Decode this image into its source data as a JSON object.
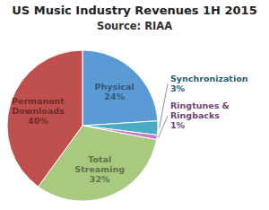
{
  "chart_data": {
    "type": "pie",
    "title": "US Music Industry Revenues 1H 2015",
    "subtitle": "Source: RIAA",
    "categories": [
      "Physical",
      "Synchronization",
      "Ringtunes &\nRingbacks",
      "Total\nStreaming",
      "Permanent\nDownloads"
    ],
    "values": [
      24,
      3,
      1,
      32,
      40
    ],
    "value_labels": [
      "24%",
      "3%",
      "1%",
      "32%",
      "40%"
    ],
    "colors": [
      "#5b9bd5",
      "#4bacc6",
      "#c77cca",
      "#a9c97e",
      "#c0504d"
    ],
    "data_labels": true
  }
}
